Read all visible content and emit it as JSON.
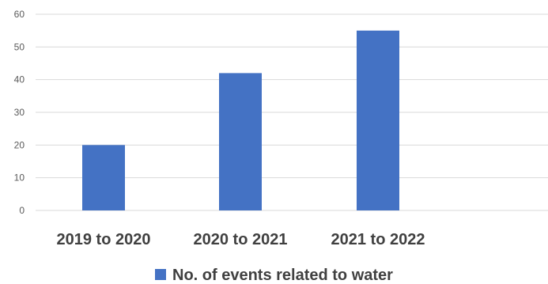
{
  "chart_data": {
    "type": "bar",
    "categories": [
      "2019 to 2020",
      "2020 to 2021",
      "2021 to 2022"
    ],
    "series": [
      {
        "name": "No. of events related to water",
        "values": [
          20,
          42,
          55
        ],
        "color": "#4472c4"
      }
    ],
    "ylim": [
      0,
      60
    ],
    "yticks": [
      0,
      10,
      20,
      30,
      40,
      50,
      60
    ],
    "grid": true,
    "legend": "bottom"
  }
}
